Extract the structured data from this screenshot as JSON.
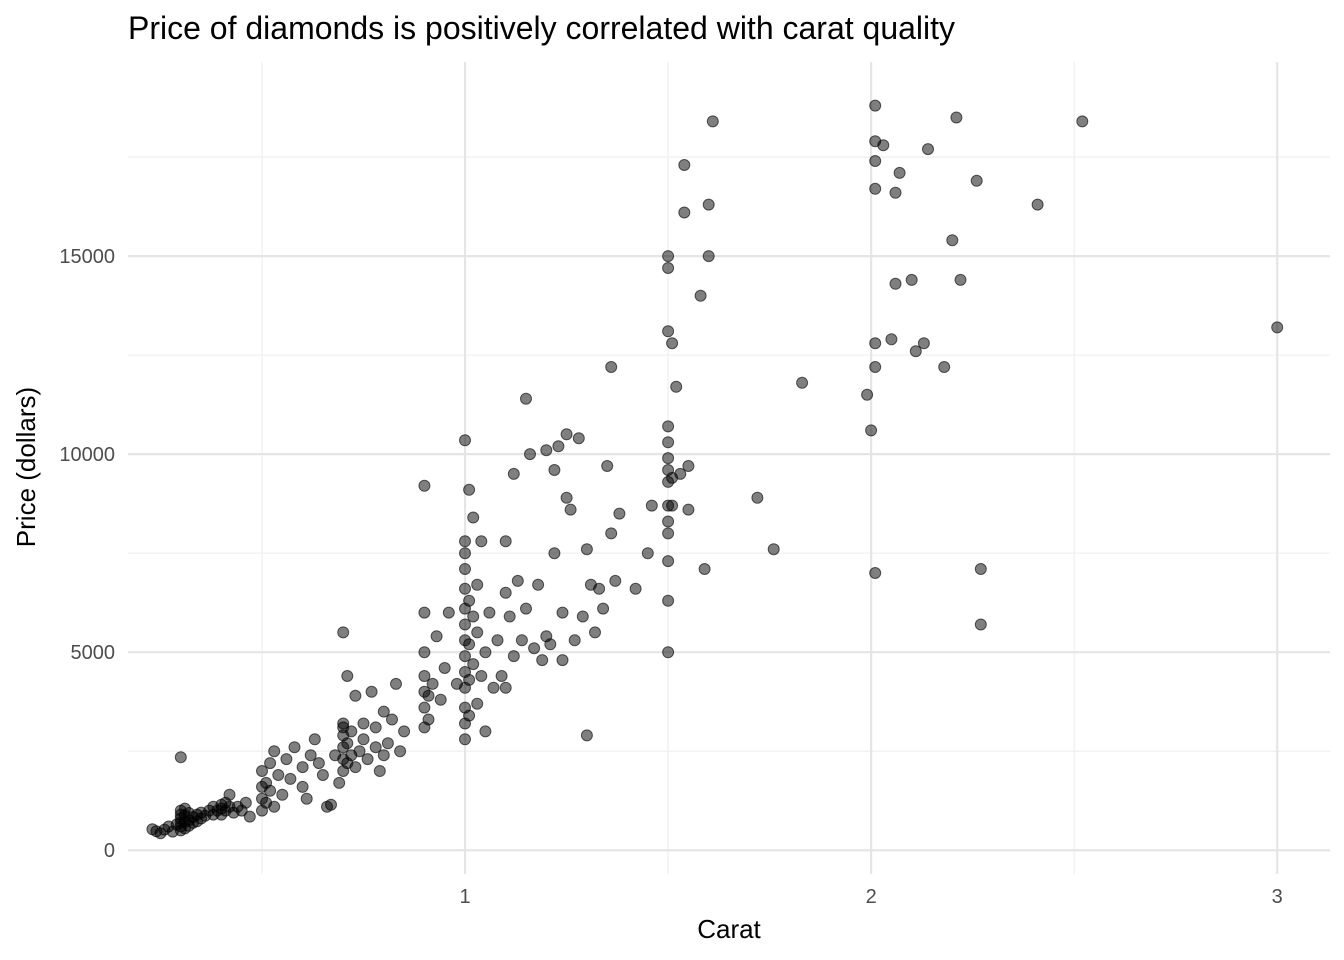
{
  "chart_data": {
    "type": "scatter",
    "title": "Price of diamonds is positively correlated with carat quality",
    "xlabel": "Carat",
    "ylabel": "Price (dollars)",
    "xlim": [
      0.17,
      3.13
    ],
    "ylim": [
      -600,
      19900
    ],
    "x_ticks": [
      1,
      2,
      3
    ],
    "x_tick_labels": [
      "1",
      "2",
      "3"
    ],
    "x_minor_ticks": [
      0.5,
      1.5,
      2.5
    ],
    "y_ticks": [
      0,
      5000,
      10000,
      15000
    ],
    "y_tick_labels": [
      "0",
      "5000",
      "10000",
      "15000"
    ],
    "y_minor_ticks": [
      2500,
      7500,
      12500,
      17500
    ],
    "grid": true,
    "legend": "none",
    "point_color": "#000000",
    "point_alpha": 0.5,
    "points": [
      [
        0.23,
        530
      ],
      [
        0.24,
        480
      ],
      [
        0.25,
        430
      ],
      [
        0.26,
        520
      ],
      [
        0.27,
        600
      ],
      [
        0.28,
        470
      ],
      [
        0.29,
        650
      ],
      [
        0.3,
        500
      ],
      [
        0.3,
        600
      ],
      [
        0.3,
        700
      ],
      [
        0.3,
        800
      ],
      [
        0.3,
        900
      ],
      [
        0.3,
        1000
      ],
      [
        0.31,
        550
      ],
      [
        0.31,
        720
      ],
      [
        0.31,
        880
      ],
      [
        0.31,
        1050
      ],
      [
        0.32,
        620
      ],
      [
        0.32,
        760
      ],
      [
        0.32,
        940
      ],
      [
        0.33,
        690
      ],
      [
        0.33,
        840
      ],
      [
        0.34,
        730
      ],
      [
        0.34,
        900
      ],
      [
        0.35,
        800
      ],
      [
        0.35,
        950
      ],
      [
        0.36,
        870
      ],
      [
        0.37,
        1000
      ],
      [
        0.38,
        900
      ],
      [
        0.38,
        1100
      ],
      [
        0.39,
        1000
      ],
      [
        0.4,
        900
      ],
      [
        0.4,
        1050
      ],
      [
        0.4,
        1150
      ],
      [
        0.41,
        1000
      ],
      [
        0.41,
        1200
      ],
      [
        0.42,
        1100
      ],
      [
        0.42,
        1400
      ],
      [
        0.43,
        950
      ],
      [
        0.44,
        1100
      ],
      [
        0.45,
        1000
      ],
      [
        0.46,
        1200
      ],
      [
        0.47,
        850
      ],
      [
        0.3,
        2350
      ],
      [
        0.5,
        1000
      ],
      [
        0.5,
        1300
      ],
      [
        0.5,
        1600
      ],
      [
        0.5,
        2000
      ],
      [
        0.51,
        1200
      ],
      [
        0.51,
        1700
      ],
      [
        0.52,
        1500
      ],
      [
        0.52,
        2200
      ],
      [
        0.53,
        1100
      ],
      [
        0.53,
        2500
      ],
      [
        0.54,
        1900
      ],
      [
        0.55,
        1400
      ],
      [
        0.56,
        2300
      ],
      [
        0.57,
        1800
      ],
      [
        0.58,
        2600
      ],
      [
        0.6,
        1600
      ],
      [
        0.6,
        2100
      ],
      [
        0.61,
        1300
      ],
      [
        0.62,
        2400
      ],
      [
        0.63,
        2800
      ],
      [
        0.64,
        2200
      ],
      [
        0.65,
        1900
      ],
      [
        0.66,
        1100
      ],
      [
        0.68,
        2400
      ],
      [
        0.69,
        1700
      ],
      [
        0.7,
        3200
      ],
      [
        0.7,
        2000
      ],
      [
        0.7,
        2300
      ],
      [
        0.7,
        2600
      ],
      [
        0.7,
        2900
      ],
      [
        0.7,
        3100
      ],
      [
        0.71,
        2200
      ],
      [
        0.71,
        2700
      ],
      [
        0.72,
        2400
      ],
      [
        0.72,
        3000
      ],
      [
        0.73,
        2100
      ],
      [
        0.73,
        3900
      ],
      [
        0.74,
        2500
      ],
      [
        0.75,
        2800
      ],
      [
        0.75,
        3200
      ],
      [
        0.76,
        2300
      ],
      [
        0.77,
        4000
      ],
      [
        0.78,
        2600
      ],
      [
        0.78,
        3100
      ],
      [
        0.79,
        2000
      ],
      [
        0.8,
        2400
      ],
      [
        0.8,
        3500
      ],
      [
        0.81,
        2700
      ],
      [
        0.82,
        3300
      ],
      [
        0.83,
        4200
      ],
      [
        0.84,
        2500
      ],
      [
        0.85,
        3000
      ],
      [
        0.7,
        5500
      ],
      [
        0.71,
        4400
      ],
      [
        0.67,
        1150
      ],
      [
        0.9,
        3100
      ],
      [
        0.9,
        3600
      ],
      [
        0.9,
        4000
      ],
      [
        0.9,
        4400
      ],
      [
        0.9,
        5000
      ],
      [
        0.9,
        6000
      ],
      [
        0.91,
        3300
      ],
      [
        0.91,
        3900
      ],
      [
        0.92,
        4200
      ],
      [
        0.93,
        5400
      ],
      [
        0.94,
        3800
      ],
      [
        0.95,
        4600
      ],
      [
        0.96,
        6000
      ],
      [
        0.98,
        4200
      ],
      [
        0.9,
        9200
      ],
      [
        1.0,
        2800
      ],
      [
        1.0,
        3200
      ],
      [
        1.0,
        3600
      ],
      [
        1.0,
        4100
      ],
      [
        1.0,
        4500
      ],
      [
        1.0,
        4900
      ],
      [
        1.0,
        5300
      ],
      [
        1.0,
        5700
      ],
      [
        1.0,
        6100
      ],
      [
        1.0,
        6600
      ],
      [
        1.0,
        7100
      ],
      [
        1.0,
        7500
      ],
      [
        1.0,
        7800
      ],
      [
        1.0,
        10350
      ],
      [
        1.01,
        3400
      ],
      [
        1.01,
        4300
      ],
      [
        1.01,
        5200
      ],
      [
        1.01,
        6300
      ],
      [
        1.01,
        9100
      ],
      [
        1.02,
        4700
      ],
      [
        1.02,
        5900
      ],
      [
        1.02,
        8400
      ],
      [
        1.03,
        3700
      ],
      [
        1.03,
        5500
      ],
      [
        1.03,
        6700
      ],
      [
        1.04,
        4400
      ],
      [
        1.04,
        7800
      ],
      [
        1.05,
        3000
      ],
      [
        1.05,
        5000
      ],
      [
        1.06,
        6000
      ],
      [
        1.07,
        4100
      ],
      [
        1.08,
        5300
      ],
      [
        1.09,
        4400
      ],
      [
        1.1,
        4100
      ],
      [
        1.1,
        6500
      ],
      [
        1.1,
        7800
      ],
      [
        1.11,
        5900
      ],
      [
        1.12,
        9500
      ],
      [
        1.12,
        4900
      ],
      [
        1.13,
        6800
      ],
      [
        1.14,
        5300
      ],
      [
        1.15,
        6100
      ],
      [
        1.15,
        11400
      ],
      [
        1.16,
        10000
      ],
      [
        1.17,
        5100
      ],
      [
        1.18,
        6700
      ],
      [
        1.19,
        4800
      ],
      [
        1.2,
        5400
      ],
      [
        1.2,
        10100
      ],
      [
        1.21,
        5200
      ],
      [
        1.22,
        7500
      ],
      [
        1.22,
        9600
      ],
      [
        1.23,
        10200
      ],
      [
        1.24,
        6000
      ],
      [
        1.24,
        4800
      ],
      [
        1.25,
        8900
      ],
      [
        1.25,
        10500
      ],
      [
        1.26,
        8600
      ],
      [
        1.27,
        5300
      ],
      [
        1.28,
        10400
      ],
      [
        1.29,
        5900
      ],
      [
        1.3,
        2900
      ],
      [
        1.3,
        7600
      ],
      [
        1.31,
        6700
      ],
      [
        1.32,
        5500
      ],
      [
        1.33,
        6600
      ],
      [
        1.34,
        6100
      ],
      [
        1.35,
        9700
      ],
      [
        1.36,
        8000
      ],
      [
        1.36,
        12200
      ],
      [
        1.37,
        6800
      ],
      [
        1.38,
        8500
      ],
      [
        1.42,
        6600
      ],
      [
        1.45,
        7500
      ],
      [
        1.46,
        8700
      ],
      [
        1.5,
        5000
      ],
      [
        1.5,
        6300
      ],
      [
        1.5,
        7300
      ],
      [
        1.5,
        8000
      ],
      [
        1.5,
        8300
      ],
      [
        1.5,
        8700
      ],
      [
        1.5,
        9300
      ],
      [
        1.5,
        9600
      ],
      [
        1.5,
        9900
      ],
      [
        1.5,
        10300
      ],
      [
        1.5,
        10700
      ],
      [
        1.5,
        13100
      ],
      [
        1.5,
        14700
      ],
      [
        1.5,
        15000
      ],
      [
        1.51,
        8700
      ],
      [
        1.51,
        9400
      ],
      [
        1.51,
        12800
      ],
      [
        1.52,
        11700
      ],
      [
        1.53,
        9500
      ],
      [
        1.54,
        16100
      ],
      [
        1.54,
        17300
      ],
      [
        1.55,
        9700
      ],
      [
        1.55,
        8600
      ],
      [
        1.58,
        14000
      ],
      [
        1.59,
        7100
      ],
      [
        1.6,
        15000
      ],
      [
        1.6,
        16300
      ],
      [
        1.61,
        18400
      ],
      [
        1.72,
        8900
      ],
      [
        1.76,
        7600
      ],
      [
        1.83,
        11800
      ],
      [
        1.99,
        11500
      ],
      [
        2.0,
        10600
      ],
      [
        2.01,
        7000
      ],
      [
        2.01,
        12200
      ],
      [
        2.01,
        12800
      ],
      [
        2.01,
        16700
      ],
      [
        2.01,
        17400
      ],
      [
        2.01,
        17900
      ],
      [
        2.01,
        18800
      ],
      [
        2.03,
        17800
      ],
      [
        2.05,
        12900
      ],
      [
        2.06,
        14300
      ],
      [
        2.06,
        16600
      ],
      [
        2.07,
        17100
      ],
      [
        2.1,
        14400
      ],
      [
        2.11,
        12600
      ],
      [
        2.13,
        12800
      ],
      [
        2.14,
        17700
      ],
      [
        2.18,
        12200
      ],
      [
        2.2,
        15400
      ],
      [
        2.21,
        18500
      ],
      [
        2.22,
        14400
      ],
      [
        2.26,
        16900
      ],
      [
        2.27,
        5700
      ],
      [
        2.27,
        7100
      ],
      [
        2.41,
        16300
      ],
      [
        2.52,
        18400
      ],
      [
        3.0,
        13200
      ]
    ]
  }
}
